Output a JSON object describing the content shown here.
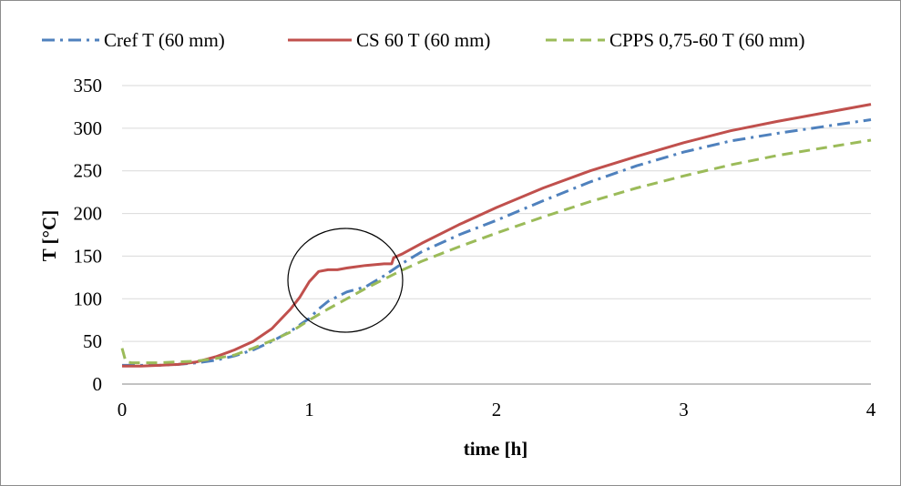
{
  "chart_data": {
    "type": "line",
    "title": "",
    "xlabel": "time [h]",
    "ylabel": "T [°C]",
    "xlim": [
      0,
      4
    ],
    "ylim": [
      0,
      350
    ],
    "xticks": [
      0,
      1,
      2,
      3,
      4
    ],
    "yticks": [
      0,
      50,
      100,
      150,
      200,
      250,
      300,
      350
    ],
    "grid": "horizontal",
    "legend_position": "top",
    "annotation": "ellipse around 1.0–1.5 h region (100–165 °C)",
    "series": [
      {
        "name": "Cref T (60 mm)",
        "color": "#4F81BD",
        "dash": "dash-dot",
        "x": [
          0,
          0.1,
          0.2,
          0.3,
          0.4,
          0.5,
          0.6,
          0.7,
          0.8,
          0.9,
          1.0,
          1.05,
          1.1,
          1.2,
          1.3,
          1.4,
          1.5,
          1.6,
          1.8,
          2.0,
          2.25,
          2.5,
          2.75,
          3.0,
          3.25,
          3.5,
          3.75,
          4.0
        ],
        "y": [
          22,
          22,
          22,
          23,
          25,
          28,
          33,
          40,
          50,
          62,
          77,
          88,
          97,
          108,
          114,
          127,
          142,
          155,
          175,
          192,
          215,
          237,
          256,
          272,
          285,
          294,
          302,
          310
        ]
      },
      {
        "name": "CS 60 T (60 mm)",
        "color": "#C0504D",
        "dash": "solid",
        "x": [
          0,
          0.1,
          0.2,
          0.3,
          0.4,
          0.5,
          0.6,
          0.7,
          0.8,
          0.9,
          0.95,
          1.0,
          1.05,
          1.1,
          1.15,
          1.2,
          1.3,
          1.4,
          1.44,
          1.45,
          1.5,
          1.6,
          1.8,
          2.0,
          2.25,
          2.5,
          2.75,
          3.0,
          3.25,
          3.5,
          3.75,
          4.0
        ],
        "y": [
          21,
          21,
          22,
          23,
          26,
          32,
          40,
          50,
          65,
          88,
          102,
          120,
          132,
          134,
          134,
          136,
          139,
          141,
          141,
          148,
          153,
          165,
          187,
          207,
          230,
          250,
          267,
          283,
          297,
          308,
          318,
          328
        ]
      },
      {
        "name": "CPPS 0,75-60 T (60 mm)",
        "color": "#9BBB59",
        "dash": "dashed",
        "x": [
          0,
          0.02,
          0.05,
          0.1,
          0.2,
          0.3,
          0.4,
          0.5,
          0.6,
          0.7,
          0.8,
          0.9,
          1.0,
          1.1,
          1.2,
          1.3,
          1.4,
          1.5,
          1.6,
          1.8,
          2.0,
          2.25,
          2.5,
          2.75,
          3.0,
          3.25,
          3.5,
          3.75,
          4.0
        ],
        "y": [
          42,
          26,
          25,
          25,
          25,
          26,
          27,
          30,
          34,
          42,
          51,
          61,
          75,
          88,
          100,
          112,
          123,
          134,
          144,
          161,
          177,
          196,
          214,
          230,
          244,
          257,
          268,
          277,
          286
        ]
      }
    ]
  }
}
